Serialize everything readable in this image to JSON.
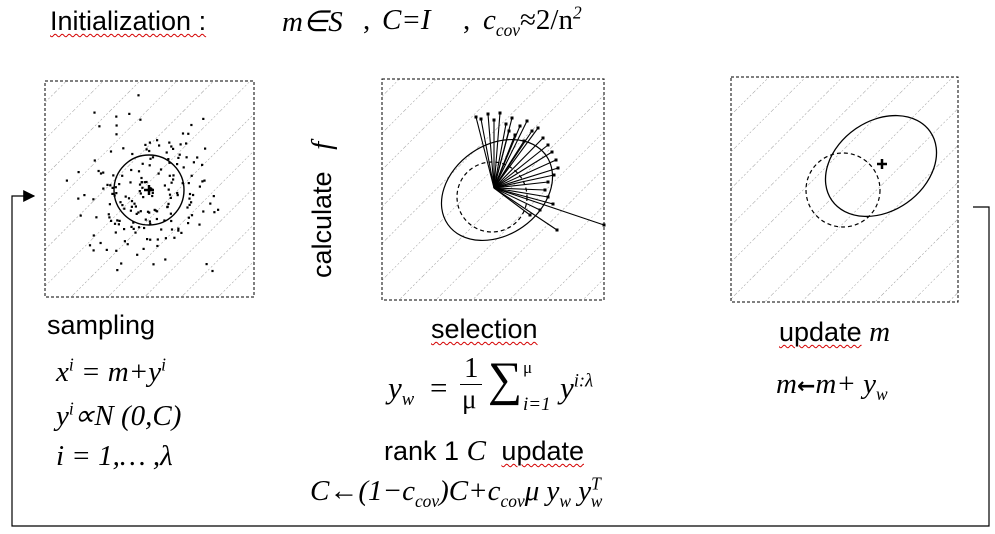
{
  "title": {
    "label": "Initialization :",
    "m_in_S": "m∈S",
    "C_eq_I": "C=I",
    "c_cov": "c",
    "c_cov_sub": "cov",
    "c_cov_value": "≈2/n",
    "c_cov_value_sup": "2",
    "sep": ","
  },
  "side": {
    "calculate": "calculate",
    "f": "f"
  },
  "sampling": {
    "label": "sampling",
    "eq1_x": "x",
    "eq1_i": "i",
    "eq1_mid": " = m+y",
    "eq1_i2": "i",
    "eq2_y": "y",
    "eq2_i": "i",
    "eq2_rest": "∝N (0,C)",
    "eq3": "i = 1,… ,λ"
  },
  "selection": {
    "label": "selection",
    "yw_y": "y",
    "yw_sub": "w",
    "eq": "=",
    "frac_num": "1",
    "frac_den": "μ",
    "sum": "∑",
    "sum_top": "μ",
    "sum_bot": "i=1",
    "y": "y",
    "y_sup": "i:λ",
    "rank_label_a": "rank 1",
    "rank_label_C": "C",
    "rank_label_b": "update",
    "update_eq": "C←(1−c",
    "update_sub1": "cov",
    "update_mid": ")C+c",
    "update_sub2": "cov",
    "update_mu": "μ y",
    "update_sub3": "w",
    "update_y": " y",
    "update_sup": "T",
    "update_sub4": "w"
  },
  "update": {
    "label": "update",
    "label_m": "m",
    "eq_m": "m",
    "eq_arrow": "←",
    "eq_rest": "m+ y",
    "eq_sub": "w"
  }
}
